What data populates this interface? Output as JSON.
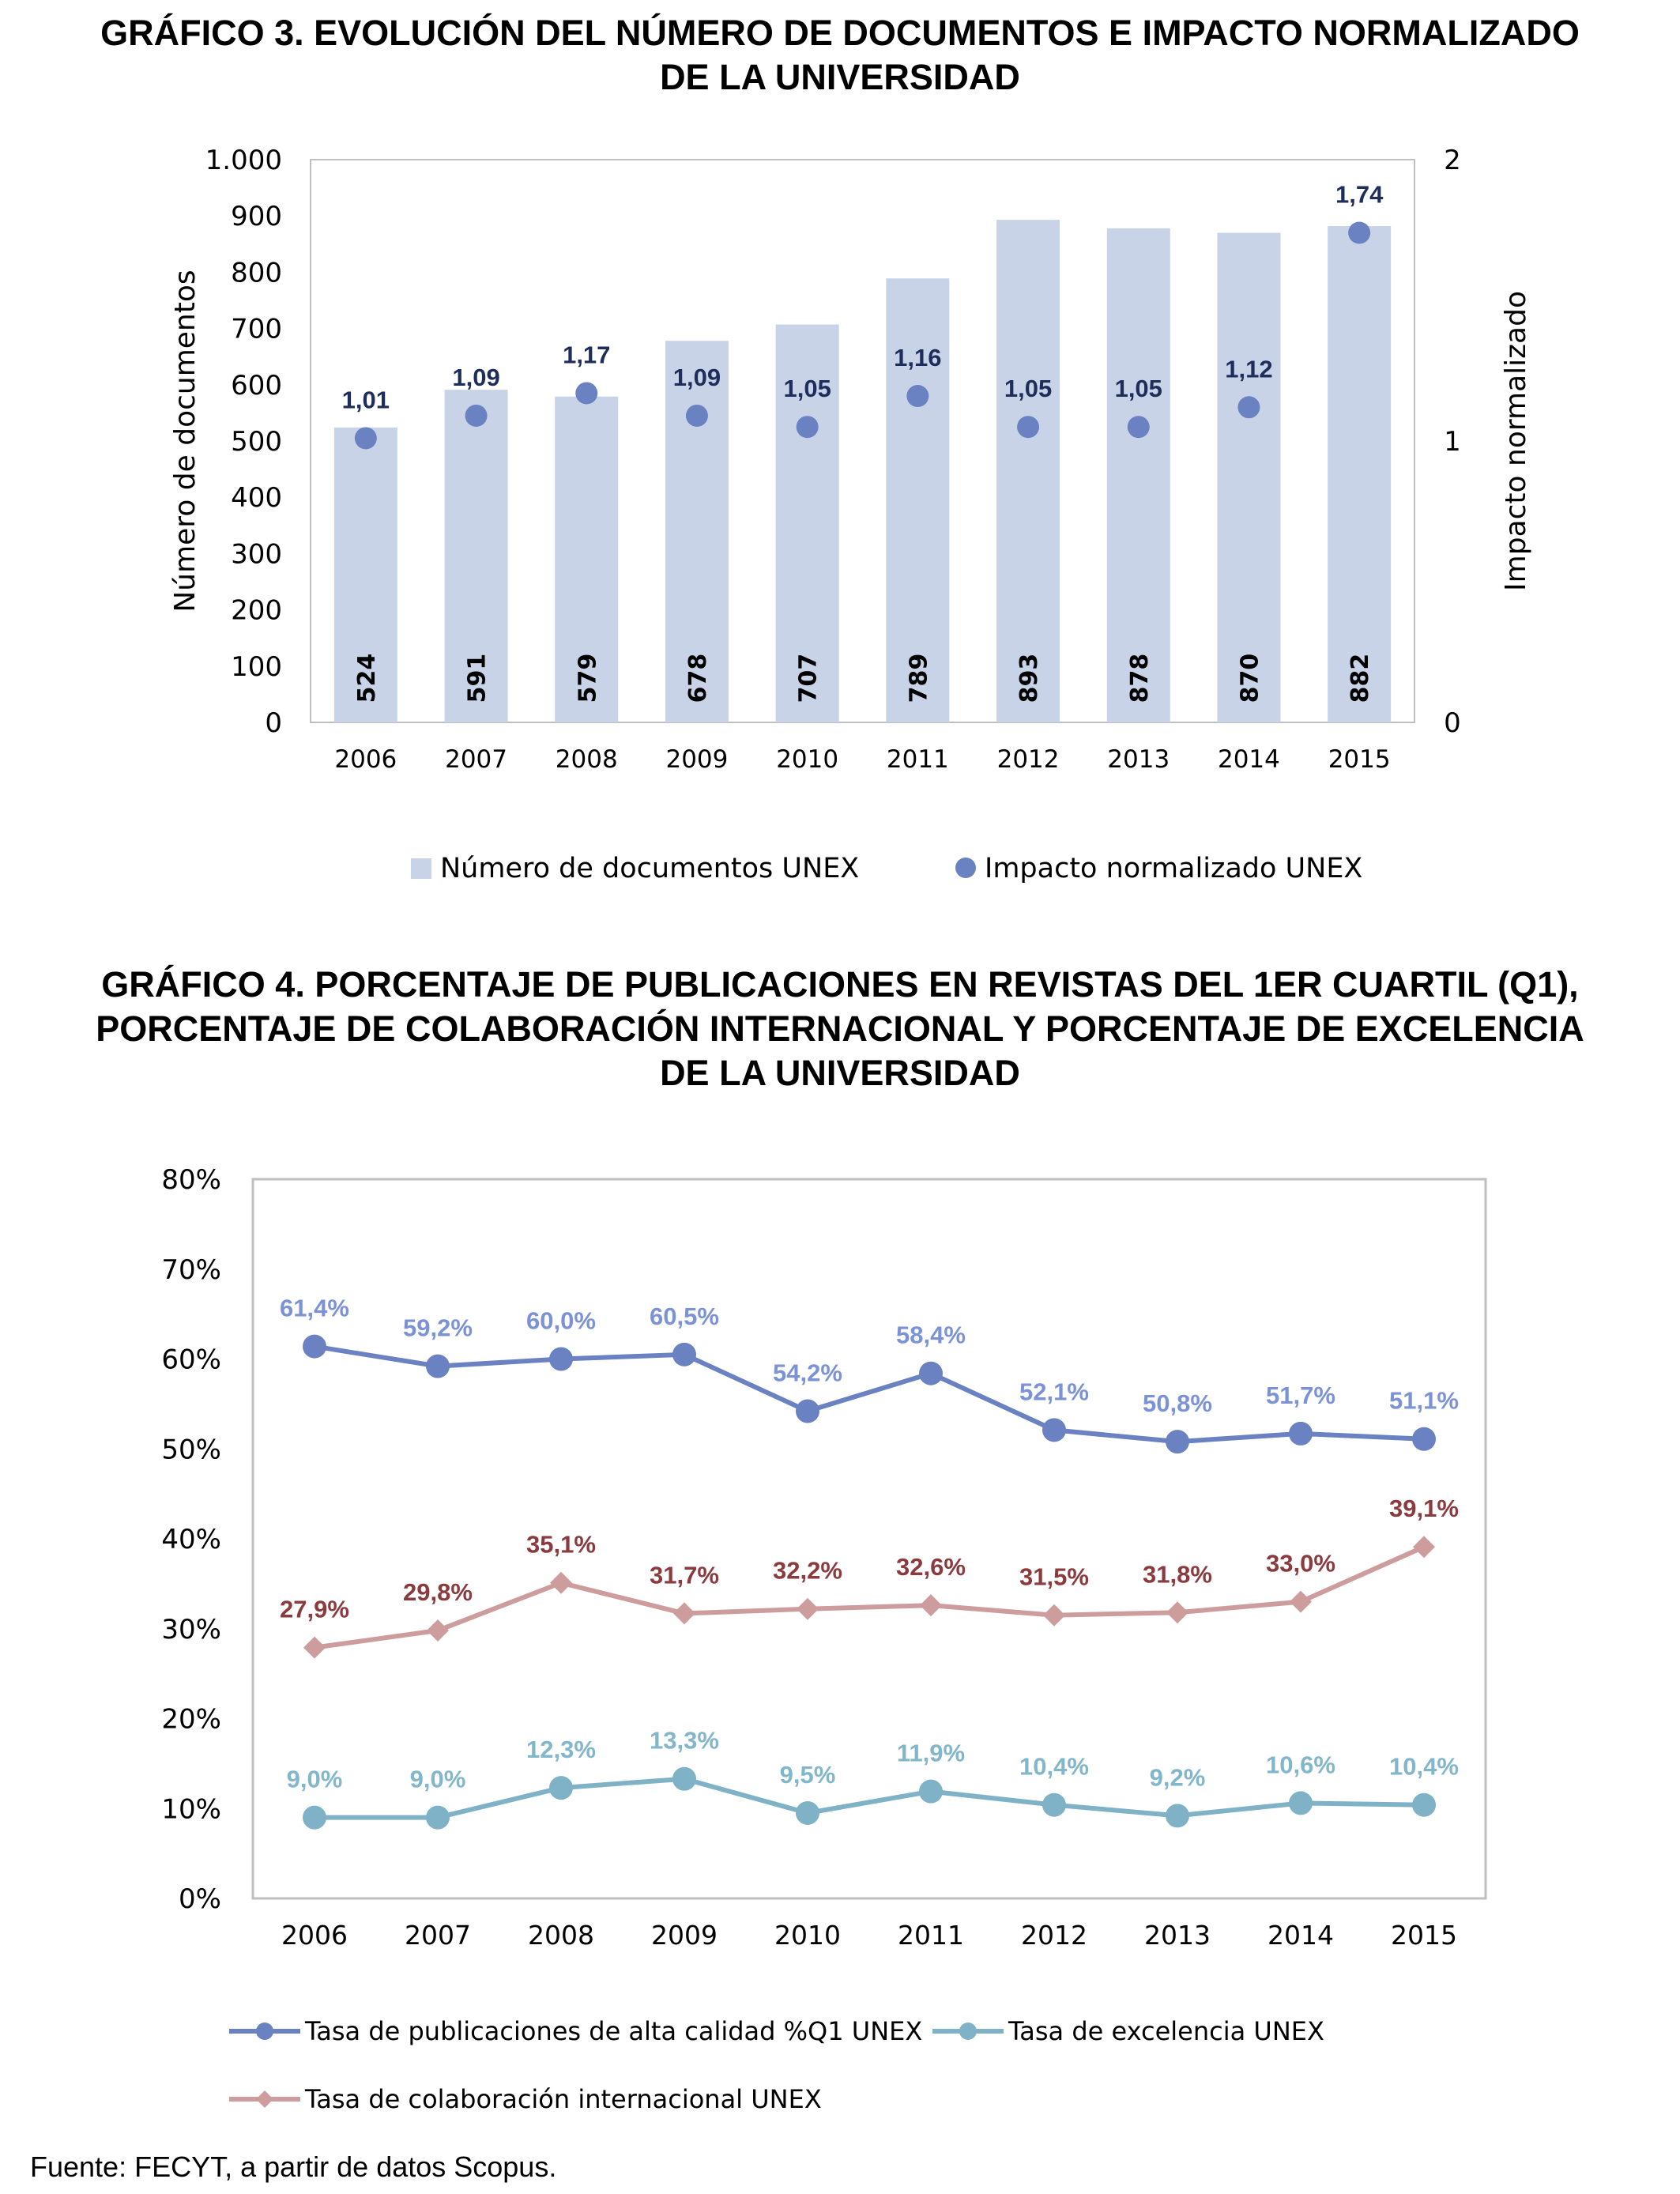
{
  "charts": [
    {
      "title_line1": "GRÁFICO 3. EVOLUCIÓN DEL NÚMERO DE DOCUMENTOS E IMPACTO NORMALIZADO",
      "title_line2": "DE LA UNIVERSIDAD"
    },
    {
      "title_line1": "GRÁFICO 4. PORCENTAJE DE PUBLICACIONES EN REVISTAS DEL 1ER CUARTIL (Q1),",
      "title_line2": "PORCENTAJE DE COLABORACIÓN INTERNACIONAL Y PORCENTAJE DE EXCELENCIA",
      "title_line3": "DE LA UNIVERSIDAD"
    }
  ],
  "chart_data": [
    {
      "type": "bar",
      "title": "GRÁFICO 3. EVOLUCIÓN DEL NÚMERO DE DOCUMENTOS E IMPACTO NORMALIZADO DE LA UNIVERSIDAD",
      "categories": [
        "2006",
        "2007",
        "2008",
        "2009",
        "2010",
        "2011",
        "2012",
        "2013",
        "2014",
        "2015"
      ],
      "series": [
        {
          "name": "Número de documentos UNEX",
          "kind": "bar",
          "axis": "left",
          "values": [
            524,
            591,
            579,
            678,
            707,
            789,
            893,
            878,
            870,
            882
          ],
          "labels": [
            "524",
            "591",
            "579",
            "678",
            "707",
            "789",
            "893",
            "878",
            "870",
            "882"
          ],
          "color": "#c9d3e8"
        },
        {
          "name": "Impacto normalizado UNEX",
          "kind": "scatter",
          "axis": "right",
          "values": [
            1.01,
            1.09,
            1.17,
            1.09,
            1.05,
            1.16,
            1.05,
            1.05,
            1.12,
            1.74
          ],
          "labels": [
            "1,01",
            "1,09",
            "1,17",
            "1,09",
            "1,05",
            "1,16",
            "1,05",
            "1,05",
            "1,12",
            "1,74"
          ],
          "color": "#6a81c2",
          "label_color": "#1f2d5a"
        }
      ],
      "ylabel": "Número de documentos",
      "y2label": "Impacto normalizado",
      "ylim": [
        0,
        1000
      ],
      "y2lim": [
        0,
        2
      ],
      "yticks": [
        0,
        100,
        200,
        300,
        400,
        500,
        600,
        700,
        800,
        900,
        1000
      ],
      "yticklabels": [
        "0",
        "100",
        "200",
        "300",
        "400",
        "500",
        "600",
        "700",
        "800",
        "900",
        "1.000"
      ],
      "y2ticks": [
        0,
        1,
        2
      ],
      "y2ticklabels": [
        "0",
        "1",
        "2"
      ],
      "legend": "bottom"
    },
    {
      "type": "line",
      "title": "GRÁFICO 4. PORCENTAJE DE PUBLICACIONES EN REVISTAS DEL 1ER CUARTIL (Q1), PORCENTAJE DE COLABORACIÓN INTERNACIONAL Y PORCENTAJE DE EXCELENCIA DE LA UNIVERSIDAD",
      "categories": [
        "2006",
        "2007",
        "2008",
        "2009",
        "2010",
        "2011",
        "2012",
        "2013",
        "2014",
        "2015"
      ],
      "series": [
        {
          "name": "Tasa de publicaciones de alta calidad %Q1 UNEX",
          "marker": "circle",
          "values": [
            61.4,
            59.2,
            60.0,
            60.5,
            54.2,
            58.4,
            52.1,
            50.8,
            51.7,
            51.1
          ],
          "labels": [
            "61,4%",
            "59,2%",
            "60,0%",
            "60,5%",
            "54,2%",
            "58,4%",
            "52,1%",
            "50,8%",
            "51,7%",
            "51,1%"
          ],
          "color": "#6a81c2",
          "label_color": "#7b93d6"
        },
        {
          "name": "Tasa de excelencia UNEX",
          "marker": "circle",
          "values": [
            9.0,
            9.0,
            12.3,
            13.3,
            9.5,
            11.9,
            10.4,
            9.2,
            10.6,
            10.4
          ],
          "labels": [
            "9,0%",
            "9,0%",
            "12,3%",
            "13,3%",
            "9,5%",
            "11,9%",
            "10,4%",
            "9,2%",
            "10,6%",
            "10,4%"
          ],
          "color": "#7fb2c7",
          "label_color": "#82b6cb"
        },
        {
          "name": "Tasa de colaboración internacional UNEX",
          "marker": "diamond",
          "values": [
            27.9,
            29.8,
            35.1,
            31.7,
            32.2,
            32.6,
            31.5,
            31.8,
            33.0,
            39.1
          ],
          "labels": [
            "27,9%",
            "29,8%",
            "35,1%",
            "31,7%",
            "32,2%",
            "32,6%",
            "31,5%",
            "31,8%",
            "33,0%",
            "39,1%"
          ],
          "color": "#cd9d9d",
          "label_color": "#8b3a3e"
        }
      ],
      "ylim": [
        0,
        80
      ],
      "yticks": [
        0,
        10,
        20,
        30,
        40,
        50,
        60,
        70,
        80
      ],
      "yticklabels": [
        "0%",
        "10%",
        "20%",
        "30%",
        "40%",
        "50%",
        "60%",
        "70%",
        "80%"
      ],
      "legend": "bottom"
    }
  ],
  "source": "Fuente: FECYT, a partir de datos Scopus."
}
